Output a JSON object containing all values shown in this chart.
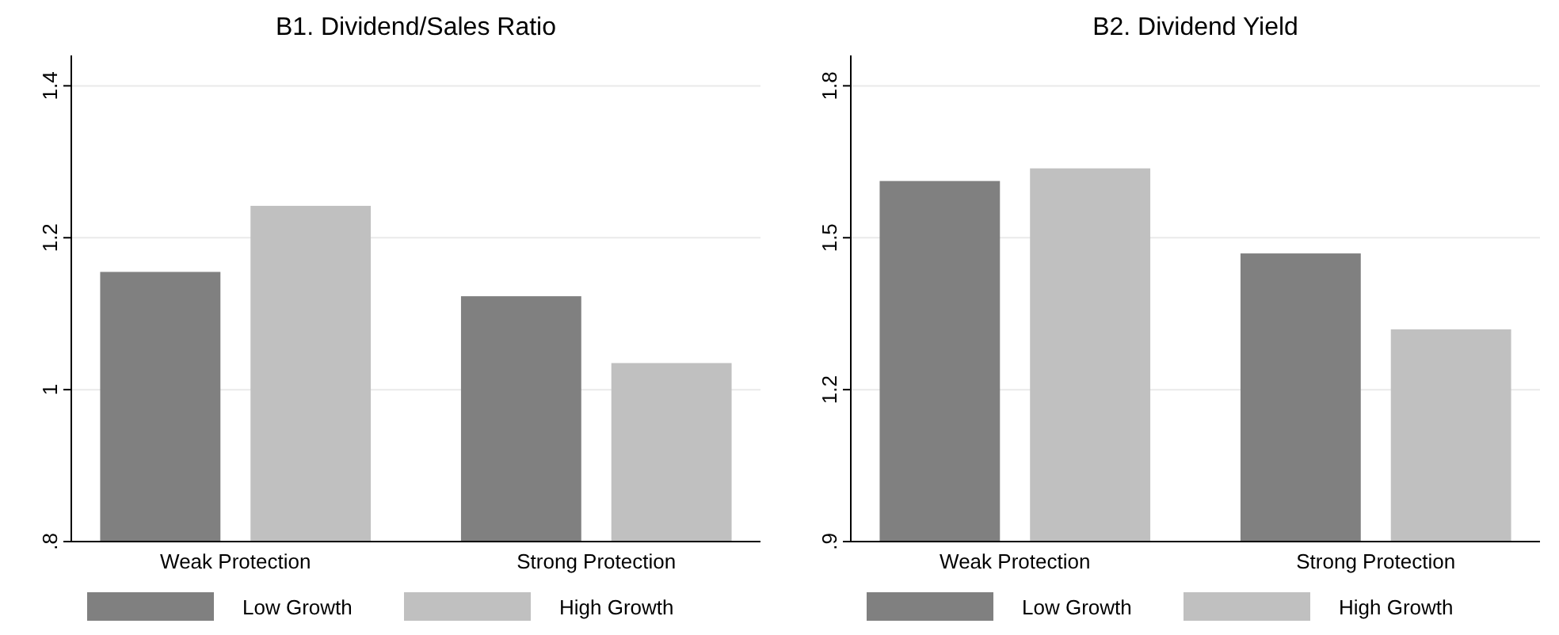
{
  "chart_data": [
    {
      "type": "bar",
      "title": "B1. Dividend/Sales Ratio",
      "categories": [
        "Weak Protection",
        "Strong Protection"
      ],
      "series": [
        {
          "name": "Low Growth",
          "color": "#808080",
          "values": [
            1.155,
            1.123
          ]
        },
        {
          "name": "High Growth",
          "color": "#c0c0c0",
          "values": [
            1.242,
            1.035
          ]
        }
      ],
      "ylim": [
        0.8,
        1.44
      ],
      "yticks": [
        {
          "value": 0.8,
          "label": ".8"
        },
        1,
        1.2,
        1.4
      ],
      "grid": "y",
      "legend": "bottom"
    },
    {
      "type": "bar",
      "title": "B2. Dividend Yield",
      "categories": [
        "Weak Protection",
        "Strong Protection"
      ],
      "series": [
        {
          "name": "Low Growth",
          "color": "#808080",
          "values": [
            1.612,
            1.469
          ]
        },
        {
          "name": "High Growth",
          "color": "#c0c0c0",
          "values": [
            1.637,
            1.319
          ]
        }
      ],
      "ylim": [
        0.9,
        1.86
      ],
      "yticks": [
        {
          "value": 0.9,
          "label": ".9"
        },
        1.2,
        1.5,
        1.8
      ],
      "grid": "y",
      "legend": "bottom"
    }
  ]
}
